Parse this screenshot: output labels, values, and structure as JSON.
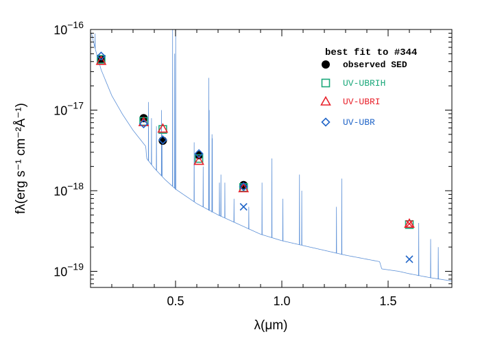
{
  "chart_data": {
    "type": "scatter",
    "title": "",
    "xlabel": "λ(μm)",
    "ylabel": "fλ(erg s⁻¹ cm⁻²Å⁻¹)",
    "xlim": [
      0.1,
      1.8
    ],
    "ylim_log10": [
      -19.2,
      -16
    ],
    "y_scale": "log",
    "x_ticks": [
      0.5,
      1.0,
      1.5
    ],
    "x_tick_labels": [
      "0.5",
      "1.0",
      "1.5"
    ],
    "y_ticks": [
      {
        "exp": -16,
        "base": "10",
        "power": "−16"
      },
      {
        "exp": -17,
        "base": "10",
        "power": "−17"
      },
      {
        "exp": -18,
        "base": "10",
        "power": "−18"
      },
      {
        "exp": -19,
        "base": "10",
        "power": "−19"
      }
    ],
    "legend": {
      "title": "best fit to #344",
      "placement": "top-right",
      "entries": [
        {
          "label": "observed SED",
          "marker": "circle",
          "color": "#000000"
        },
        {
          "label": "UV-UBRIH",
          "marker": "square",
          "color": "#1aa87a"
        },
        {
          "label": "UV-UBRI",
          "marker": "triangle",
          "color": "#e8202a"
        },
        {
          "label": "UV-UBR",
          "marker": "diamond",
          "color": "#2266c8"
        }
      ]
    },
    "model_spectrum": {
      "color": "#5b8fd6",
      "continuum": [
        [
          0.105,
          -16.05
        ],
        [
          0.12,
          -16.22
        ],
        [
          0.15,
          -16.5
        ],
        [
          0.2,
          -16.82
        ],
        [
          0.25,
          -17.05
        ],
        [
          0.3,
          -17.25
        ],
        [
          0.36,
          -17.45
        ],
        [
          0.364,
          -17.6
        ],
        [
          0.4,
          -17.72
        ],
        [
          0.45,
          -17.86
        ],
        [
          0.5,
          -17.98
        ],
        [
          0.6,
          -18.16
        ],
        [
          0.7,
          -18.3
        ],
        [
          0.8,
          -18.42
        ],
        [
          0.9,
          -18.54
        ],
        [
          1.0,
          -18.62
        ],
        [
          1.1,
          -18.68
        ],
        [
          1.2,
          -18.74
        ],
        [
          1.3,
          -18.8
        ],
        [
          1.4,
          -18.85
        ],
        [
          1.46,
          -18.88
        ],
        [
          1.47,
          -18.97
        ],
        [
          1.55,
          -19.0
        ],
        [
          1.6,
          -19.03
        ],
        [
          1.7,
          -19.08
        ],
        [
          1.8,
          -19.12
        ]
      ],
      "lines": [
        [
          0.1216,
          -16.05
        ],
        [
          0.3727,
          -16.9
        ],
        [
          0.3869,
          -17.1
        ],
        [
          0.4102,
          -17.2
        ],
        [
          0.434,
          -17.0
        ],
        [
          0.4363,
          -17.3
        ],
        [
          0.4861,
          -16.0
        ],
        [
          0.4959,
          -16.3
        ],
        [
          0.5007,
          -16.0
        ],
        [
          0.5876,
          -17.4
        ],
        [
          0.63,
          -17.7
        ],
        [
          0.6563,
          -16.6
        ],
        [
          0.6583,
          -17.0
        ],
        [
          0.6716,
          -17.3
        ],
        [
          0.6731,
          -17.35
        ],
        [
          0.7065,
          -17.9
        ],
        [
          0.7135,
          -17.8
        ],
        [
          0.732,
          -17.9
        ],
        [
          0.7751,
          -18.1
        ],
        [
          0.8446,
          -18.2
        ],
        [
          0.9069,
          -17.9
        ],
        [
          0.9532,
          -17.6
        ],
        [
          1.0049,
          -18.1
        ],
        [
          1.083,
          -17.8
        ],
        [
          1.0938,
          -18.0
        ],
        [
          1.257,
          -18.2
        ],
        [
          1.282,
          -17.85
        ],
        [
          1.644,
          -18.4
        ],
        [
          1.7,
          -18.6
        ],
        [
          1.736,
          -18.7
        ]
      ]
    },
    "series": [
      {
        "name": "observed SED",
        "marker": "circle",
        "color": "#000000",
        "points": [
          [
            0.15,
            -16.37
          ],
          [
            0.35,
            -17.1
          ],
          [
            0.44,
            -17.38
          ],
          [
            0.61,
            -17.56
          ],
          [
            0.82,
            -17.93
          ]
        ]
      },
      {
        "name": "UV-UBRIH",
        "marker": "square",
        "color": "#1aa87a",
        "points": [
          [
            0.15,
            -16.37
          ],
          [
            0.35,
            -17.14
          ],
          [
            0.44,
            -17.24
          ],
          [
            0.61,
            -17.6
          ],
          [
            0.82,
            -17.96
          ],
          [
            1.6,
            -18.42
          ]
        ]
      },
      {
        "name": "UV-UBRI",
        "marker": "triangle",
        "color": "#e8202a",
        "points": [
          [
            0.15,
            -16.39
          ],
          [
            0.35,
            -17.15
          ],
          [
            0.44,
            -17.23
          ],
          [
            0.61,
            -17.63
          ],
          [
            0.82,
            -17.97
          ],
          [
            1.6,
            -18.41
          ]
        ]
      },
      {
        "name": "UV-UBR",
        "marker": "diamond",
        "color": "#2266c8",
        "points": [
          [
            0.15,
            -16.33
          ],
          [
            0.35,
            -17.17
          ],
          [
            0.44,
            -17.37
          ],
          [
            0.61,
            -17.54
          ],
          [
            0.82,
            -17.95
          ]
        ]
      },
      {
        "name": "",
        "marker": "x",
        "color": "#2266c8",
        "points": [
          [
            0.82,
            -18.2
          ],
          [
            1.6,
            -18.85
          ]
        ]
      },
      {
        "name": "",
        "marker": "x",
        "color": "#e8202a",
        "points": [
          [
            1.6,
            -18.41
          ]
        ]
      }
    ]
  }
}
